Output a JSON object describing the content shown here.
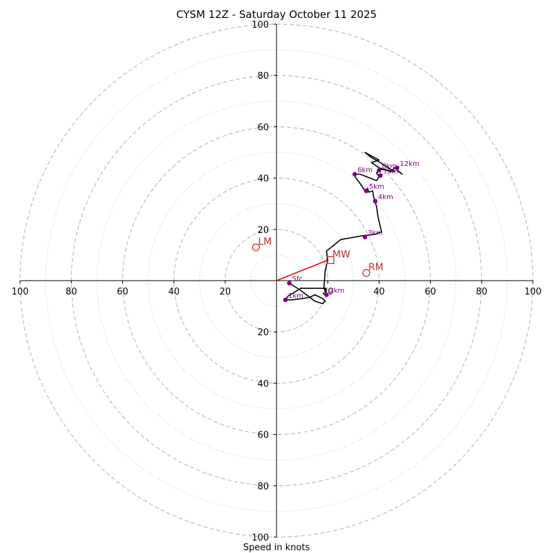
{
  "chart_data": {
    "type": "hodograph",
    "title": "CYSM 12Z - Saturday October 11 2025",
    "xlabel": "Speed in knots",
    "units": "knots",
    "range": 100,
    "rings_major": [
      20,
      40,
      60,
      80,
      100
    ],
    "rings_minor": [
      10,
      30,
      50,
      70,
      90
    ],
    "tick_values": [
      20,
      40,
      60,
      80,
      100
    ],
    "x_tick_labels": [
      "100",
      "80",
      "60",
      "40",
      "20",
      "20",
      "40",
      "60",
      "80",
      "100"
    ],
    "y_tick_labels": [
      "100",
      "80",
      "60",
      "40",
      "20",
      "20",
      "40",
      "60",
      "80",
      "100"
    ],
    "trace": [
      [
        5,
        -1
      ],
      [
        9,
        -3.5
      ],
      [
        15,
        -8
      ],
      [
        18,
        -9
      ],
      [
        19,
        -8
      ],
      [
        18,
        -7
      ],
      [
        15,
        -5.5
      ],
      [
        13,
        -6.5
      ],
      [
        10,
        -7
      ],
      [
        6,
        -7.5
      ],
      [
        3.5,
        -7.5
      ],
      [
        4.5,
        -6
      ],
      [
        7,
        -4.5
      ],
      [
        9.5,
        -3
      ],
      [
        19,
        -3
      ],
      [
        19.5,
        -5
      ],
      [
        18.5,
        -3
      ],
      [
        19,
        4
      ],
      [
        20,
        8
      ],
      [
        19.5,
        11.5
      ],
      [
        25,
        16
      ],
      [
        33.5,
        17.5
      ],
      [
        38,
        18
      ],
      [
        41,
        19
      ],
      [
        40,
        23
      ],
      [
        39.5,
        25.5
      ],
      [
        39,
        29
      ],
      [
        38,
        32
      ],
      [
        37.5,
        35
      ],
      [
        36,
        34.5
      ],
      [
        35.5,
        36
      ],
      [
        34.5,
        35
      ],
      [
        32.5,
        38
      ],
      [
        31,
        40
      ],
      [
        30,
        41.5
      ],
      [
        32.5,
        41.5
      ],
      [
        36.5,
        40
      ],
      [
        39,
        39
      ],
      [
        40,
        40.5
      ],
      [
        39,
        42
      ],
      [
        40.5,
        43.5
      ],
      [
        46,
        42.5
      ],
      [
        43.5,
        44
      ],
      [
        40.5,
        46
      ],
      [
        37,
        48
      ],
      [
        34.5,
        50
      ],
      [
        40,
        47
      ],
      [
        37,
        46
      ],
      [
        40,
        44
      ],
      [
        44.5,
        42.5
      ],
      [
        46,
        44
      ],
      [
        49,
        41.5
      ],
      [
        47,
        43
      ]
    ],
    "height_markers": [
      {
        "label": "Sfc",
        "u": 5,
        "v": -1
      },
      {
        "label": "1km",
        "u": 3.5,
        "v": -7.5
      },
      {
        "label": "2km",
        "u": 19.5,
        "v": -5.5
      },
      {
        "label": "3km",
        "u": 34.5,
        "v": 17
      },
      {
        "label": "4km",
        "u": 38.5,
        "v": 31
      },
      {
        "label": "5km",
        "u": 35,
        "v": 35
      },
      {
        "label": "6km",
        "u": 30.5,
        "v": 41.5
      },
      {
        "label": "7km",
        "u": 40.5,
        "v": 41
      },
      {
        "label": "8km",
        "u": 40,
        "v": 43
      },
      {
        "label": "12km",
        "u": 47,
        "v": 44
      }
    ],
    "motion_markers": [
      {
        "label": "LM",
        "u": -8,
        "v": 13,
        "shape": "circle"
      },
      {
        "label": "RM",
        "u": 35,
        "v": 3,
        "shape": "circle"
      },
      {
        "label": "MW",
        "u": 21,
        "v": 8,
        "shape": "square"
      }
    ],
    "mean_wind_vector": {
      "u": 20,
      "v": 8
    },
    "colors": {
      "trace": "#000000",
      "height_marker": "#800080",
      "motion": "#c0302b",
      "vector": "#ee0000",
      "ring_major": "#bbbbbb",
      "ring_minor": "#cccccc"
    }
  }
}
